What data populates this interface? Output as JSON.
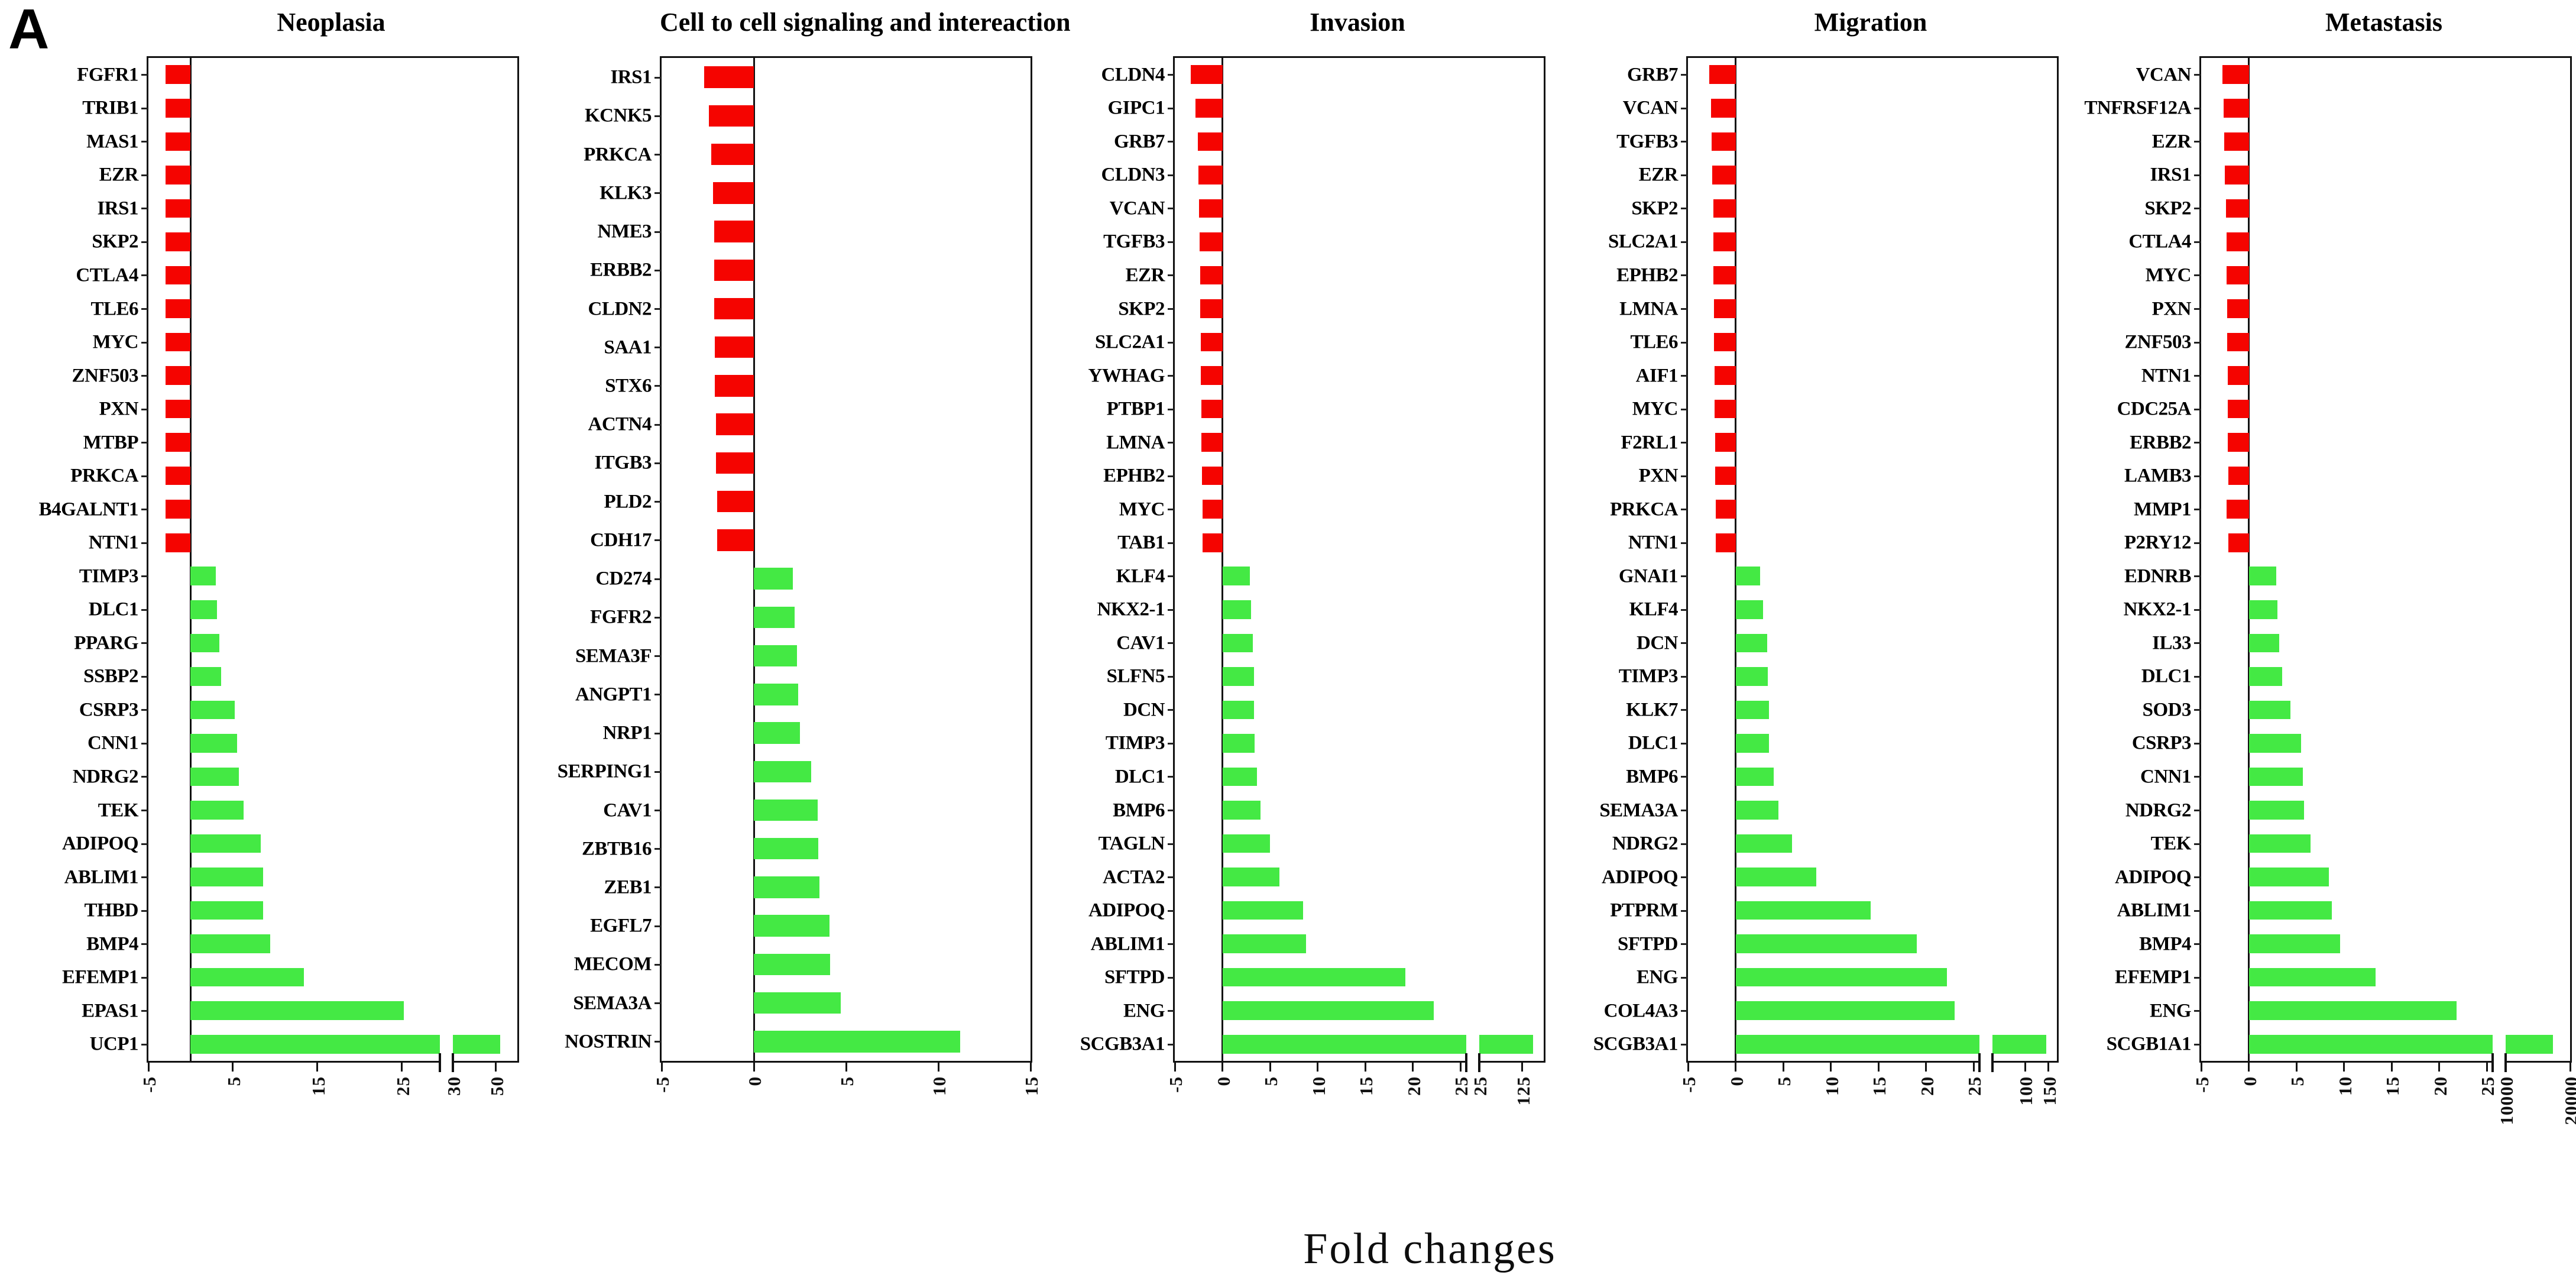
{
  "figure": {
    "panel_label": "A",
    "xlabel": "Fold changes",
    "colors": {
      "upregulated_green": "#44e944",
      "downregulated_red": "#f50400",
      "axis_black": "#121212"
    }
  },
  "chart_data": [
    {
      "type": "bar",
      "orientation": "horizontal",
      "title": "Neoplasia",
      "xlabel": "Fold changes",
      "grid": false,
      "legend": null,
      "axis": {
        "broken": true,
        "gap_frac": 0.035,
        "segments": [
          {
            "min": -5,
            "max": 29.5,
            "frac": 0.79,
            "ticks": [
              -5,
              5,
              15,
              25
            ]
          },
          {
            "min": 30,
            "max": 60,
            "frac": 0.175,
            "ticks": [
              30,
              50
            ]
          }
        ]
      },
      "genes": [
        {
          "name": "FGFR1",
          "value": -3.0
        },
        {
          "name": "TRIB1",
          "value": -3.0
        },
        {
          "name": "MAS1",
          "value": -3.0
        },
        {
          "name": "EZR",
          "value": -3.0
        },
        {
          "name": "IRS1",
          "value": -3.0
        },
        {
          "name": "SKP2",
          "value": -3.0
        },
        {
          "name": "CTLA4",
          "value": -3.0
        },
        {
          "name": "TLE6",
          "value": -3.0
        },
        {
          "name": "MYC",
          "value": -3.0
        },
        {
          "name": "ZNF503",
          "value": -3.0
        },
        {
          "name": "PXN",
          "value": -3.0
        },
        {
          "name": "MTBP",
          "value": -3.0
        },
        {
          "name": "PRKCA",
          "value": -3.0
        },
        {
          "name": "B4GALNT1",
          "value": -3.0
        },
        {
          "name": "NTN1",
          "value": -3.0
        },
        {
          "name": "TIMP3",
          "value": 3.0
        },
        {
          "name": "DLC1",
          "value": 3.1
        },
        {
          "name": "PPARG",
          "value": 3.4
        },
        {
          "name": "SSBP2",
          "value": 3.6
        },
        {
          "name": "CSRP3",
          "value": 5.2
        },
        {
          "name": "CNN1",
          "value": 5.5
        },
        {
          "name": "NDRG2",
          "value": 5.7
        },
        {
          "name": "TEK",
          "value": 6.3
        },
        {
          "name": "ADIPOQ",
          "value": 8.3
        },
        {
          "name": "ABLIM1",
          "value": 8.6
        },
        {
          "name": "THBD",
          "value": 8.6
        },
        {
          "name": "BMP4",
          "value": 9.4
        },
        {
          "name": "EFEMP1",
          "value": 13.4
        },
        {
          "name": "EPAS1",
          "value": 25.2
        },
        {
          "name": "UCP1",
          "value": 52
        }
      ]
    },
    {
      "type": "bar",
      "orientation": "horizontal",
      "title": "Cell to cell signaling and intereaction",
      "xlabel": "Fold changes",
      "grid": false,
      "legend": null,
      "axis": {
        "broken": false,
        "gap_frac": 0,
        "segments": [
          {
            "min": -5,
            "max": 15,
            "frac": 1.0,
            "ticks": [
              -5,
              0,
              5,
              10,
              15
            ]
          }
        ]
      },
      "genes": [
        {
          "name": "IRS1",
          "value": -2.7
        },
        {
          "name": "KCNK5",
          "value": -2.45
        },
        {
          "name": "PRKCA",
          "value": -2.3
        },
        {
          "name": "KLK3",
          "value": -2.2
        },
        {
          "name": "NME3",
          "value": -2.15
        },
        {
          "name": "ERBB2",
          "value": -2.15
        },
        {
          "name": "CLDN2",
          "value": -2.15
        },
        {
          "name": "SAA1",
          "value": -2.1
        },
        {
          "name": "STX6",
          "value": -2.1
        },
        {
          "name": "ACTN4",
          "value": -2.05
        },
        {
          "name": "ITGB3",
          "value": -2.05
        },
        {
          "name": "PLD2",
          "value": -2.0
        },
        {
          "name": "CDH17",
          "value": -2.0
        },
        {
          "name": "CD274",
          "value": 2.1
        },
        {
          "name": "FGFR2",
          "value": 2.2
        },
        {
          "name": "SEMA3F",
          "value": 2.35
        },
        {
          "name": "ANGPT1",
          "value": 2.4
        },
        {
          "name": "NRP1",
          "value": 2.5
        },
        {
          "name": "SERPING1",
          "value": 3.1
        },
        {
          "name": "CAV1",
          "value": 3.45
        },
        {
          "name": "ZBTB16",
          "value": 3.5
        },
        {
          "name": "ZEB1",
          "value": 3.55
        },
        {
          "name": "EGFL7",
          "value": 4.1
        },
        {
          "name": "MECOM",
          "value": 4.15
        },
        {
          "name": "SEMA3A",
          "value": 4.7
        },
        {
          "name": "NOSTRIN",
          "value": 11.2
        }
      ]
    },
    {
      "type": "bar",
      "orientation": "horizontal",
      "title": "Invasion",
      "xlabel": "Fold changes",
      "grid": false,
      "legend": null,
      "axis": {
        "broken": true,
        "gap_frac": 0.035,
        "segments": [
          {
            "min": -5,
            "max": 25.6,
            "frac": 0.79,
            "ticks": [
              -5,
              0,
              5,
              10,
              15,
              20,
              25
            ]
          },
          {
            "min": 25,
            "max": 175,
            "frac": 0.175,
            "ticks": [
              25,
              125
            ]
          }
        ]
      },
      "genes": [
        {
          "name": "CLDN4",
          "value": -3.3
        },
        {
          "name": "GIPC1",
          "value": -2.8
        },
        {
          "name": "GRB7",
          "value": -2.6
        },
        {
          "name": "CLDN3",
          "value": -2.5
        },
        {
          "name": "VCAN",
          "value": -2.45
        },
        {
          "name": "TGFB3",
          "value": -2.4
        },
        {
          "name": "EZR",
          "value": -2.35
        },
        {
          "name": "SKP2",
          "value": -2.3
        },
        {
          "name": "SLC2A1",
          "value": -2.25
        },
        {
          "name": "YWHAG",
          "value": -2.25
        },
        {
          "name": "PTBP1",
          "value": -2.2
        },
        {
          "name": "LMNA",
          "value": -2.2
        },
        {
          "name": "EPHB2",
          "value": -2.15
        },
        {
          "name": "MYC",
          "value": -2.1
        },
        {
          "name": "TAB1",
          "value": -2.1
        },
        {
          "name": "KLF4",
          "value": 2.9
        },
        {
          "name": "NKX2-1",
          "value": 3.0
        },
        {
          "name": "CAV1",
          "value": 3.2
        },
        {
          "name": "SLFN5",
          "value": 3.3
        },
        {
          "name": "DCN",
          "value": 3.3
        },
        {
          "name": "TIMP3",
          "value": 3.4
        },
        {
          "name": "DLC1",
          "value": 3.6
        },
        {
          "name": "BMP6",
          "value": 4.0
        },
        {
          "name": "TAGLN",
          "value": 5.0
        },
        {
          "name": "ACTA2",
          "value": 6.0
        },
        {
          "name": "ADIPOQ",
          "value": 8.5
        },
        {
          "name": "ABLIM1",
          "value": 8.8
        },
        {
          "name": "SFTPD",
          "value": 19.2
        },
        {
          "name": "ENG",
          "value": 22.2
        },
        {
          "name": "SCGB3A1",
          "value": 150
        }
      ]
    },
    {
      "type": "bar",
      "orientation": "horizontal",
      "title": "Migration",
      "xlabel": "Fold changes",
      "grid": false,
      "legend": null,
      "axis": {
        "broken": true,
        "gap_frac": 0.035,
        "segments": [
          {
            "min": -5,
            "max": 25.6,
            "frac": 0.79,
            "ticks": [
              -5,
              0,
              5,
              10,
              15,
              20,
              25
            ]
          },
          {
            "min": 30,
            "max": 168,
            "frac": 0.175,
            "ticks": [
              100,
              150
            ]
          }
        ]
      },
      "genes": [
        {
          "name": "GRB7",
          "value": -2.75
        },
        {
          "name": "VCAN",
          "value": -2.6
        },
        {
          "name": "TGFB3",
          "value": -2.5
        },
        {
          "name": "EZR",
          "value": -2.45
        },
        {
          "name": "SKP2",
          "value": -2.35
        },
        {
          "name": "SLC2A1",
          "value": -2.3
        },
        {
          "name": "EPHB2",
          "value": -2.3
        },
        {
          "name": "LMNA",
          "value": -2.25
        },
        {
          "name": "TLE6",
          "value": -2.25
        },
        {
          "name": "AIF1",
          "value": -2.2
        },
        {
          "name": "MYC",
          "value": -2.2
        },
        {
          "name": "F2RL1",
          "value": -2.15
        },
        {
          "name": "PXN",
          "value": -2.15
        },
        {
          "name": "PRKCA",
          "value": -2.1
        },
        {
          "name": "NTN1",
          "value": -2.1
        },
        {
          "name": "GNAI1",
          "value": 2.6
        },
        {
          "name": "KLF4",
          "value": 2.9
        },
        {
          "name": "DCN",
          "value": 3.3
        },
        {
          "name": "TIMP3",
          "value": 3.4
        },
        {
          "name": "KLK7",
          "value": 3.5
        },
        {
          "name": "DLC1",
          "value": 3.5
        },
        {
          "name": "BMP6",
          "value": 4.0
        },
        {
          "name": "SEMA3A",
          "value": 4.5
        },
        {
          "name": "NDRG2",
          "value": 5.9
        },
        {
          "name": "ADIPOQ",
          "value": 8.5
        },
        {
          "name": "PTPRM",
          "value": 14.2
        },
        {
          "name": "SFTPD",
          "value": 19.0
        },
        {
          "name": "ENG",
          "value": 22.2
        },
        {
          "name": "COL4A3",
          "value": 23.0
        },
        {
          "name": "SCGB3A1",
          "value": 145
        }
      ]
    },
    {
      "type": "bar",
      "orientation": "horizontal",
      "title": "Metastasis",
      "xlabel": "Fold changes",
      "grid": false,
      "legend": null,
      "axis": {
        "broken": true,
        "gap_frac": 0.035,
        "segments": [
          {
            "min": -5,
            "max": 25.6,
            "frac": 0.79,
            "ticks": [
              -5,
              0,
              5,
              10,
              15,
              20,
              25
            ]
          },
          {
            "min": 10000,
            "max": 20000,
            "frac": 0.175,
            "ticks": [
              10000,
              20000
            ]
          }
        ]
      },
      "genes": [
        {
          "name": "VCAN",
          "value": -2.75
        },
        {
          "name": "TNFRSF12A",
          "value": -2.65
        },
        {
          "name": "EZR",
          "value": -2.55
        },
        {
          "name": "IRS1",
          "value": -2.5
        },
        {
          "name": "SKP2",
          "value": -2.4
        },
        {
          "name": "CTLA4",
          "value": -2.35
        },
        {
          "name": "MYC",
          "value": -2.3
        },
        {
          "name": "PXN",
          "value": -2.25
        },
        {
          "name": "ZNF503",
          "value": -2.25
        },
        {
          "name": "NTN1",
          "value": -2.2
        },
        {
          "name": "CDC25A",
          "value": -2.2
        },
        {
          "name": "ERBB2",
          "value": -2.2
        },
        {
          "name": "LAMB3",
          "value": -2.15
        },
        {
          "name": "MMP1",
          "value": -2.3
        },
        {
          "name": "P2RY12",
          "value": -2.15
        },
        {
          "name": "EDNRB",
          "value": 2.9
        },
        {
          "name": "NKX2-1",
          "value": 3.0
        },
        {
          "name": "IL33",
          "value": 3.2
        },
        {
          "name": "DLC1",
          "value": 3.5
        },
        {
          "name": "SOD3",
          "value": 4.4
        },
        {
          "name": "CSRP3",
          "value": 5.5
        },
        {
          "name": "CNN1",
          "value": 5.7
        },
        {
          "name": "NDRG2",
          "value": 5.8
        },
        {
          "name": "TEK",
          "value": 6.5
        },
        {
          "name": "ADIPOQ",
          "value": 8.4
        },
        {
          "name": "ABLIM1",
          "value": 8.7
        },
        {
          "name": "BMP4",
          "value": 9.6
        },
        {
          "name": "EFEMP1",
          "value": 13.3
        },
        {
          "name": "ENG",
          "value": 21.8
        },
        {
          "name": "SCGB1A1",
          "value": 17300
        }
      ]
    }
  ]
}
